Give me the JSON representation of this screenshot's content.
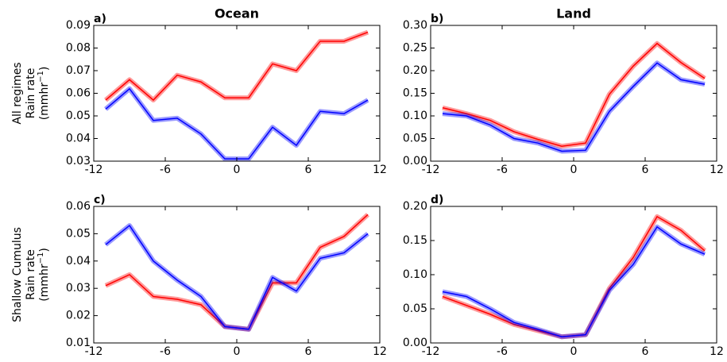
{
  "chart_data": [
    {
      "type": "line",
      "title": "Ocean",
      "label": "a)",
      "ylabel": [
        "All regimes",
        "Rain rate"
      ],
      "ylabel_unit": {
        "base": "(mmhr",
        "exp": "−1",
        "close": ")"
      },
      "x": [
        -11,
        -9,
        -7,
        -5,
        -3,
        -1,
        1,
        3,
        5,
        7,
        9,
        11
      ],
      "series": [
        {
          "color": "#ff0000",
          "values": [
            0.057,
            0.066,
            0.057,
            0.068,
            0.065,
            0.058,
            0.058,
            0.073,
            0.07,
            0.083,
            0.083,
            0.087
          ]
        },
        {
          "color": "#0000ff",
          "values": [
            0.053,
            0.062,
            0.048,
            0.049,
            0.042,
            0.031,
            0.031,
            0.045,
            0.037,
            0.052,
            0.051,
            0.057
          ]
        }
      ],
      "xlim": [
        -12,
        12
      ],
      "xticks": [
        -12,
        -6,
        0,
        6,
        12
      ],
      "ylim": [
        0.03,
        0.09
      ],
      "yticks": [
        0.03,
        0.04,
        0.05,
        0.06,
        0.07,
        0.08,
        0.09
      ]
    },
    {
      "type": "line",
      "title": "Land",
      "label": "b)",
      "x": [
        -11,
        -9,
        -7,
        -5,
        -3,
        -1,
        1,
        3,
        5,
        7,
        9,
        11
      ],
      "series": [
        {
          "color": "#ff0000",
          "values": [
            0.118,
            0.105,
            0.09,
            0.065,
            0.048,
            0.033,
            0.04,
            0.148,
            0.21,
            0.26,
            0.218,
            0.183
          ]
        },
        {
          "color": "#0000ff",
          "values": [
            0.105,
            0.1,
            0.08,
            0.05,
            0.04,
            0.022,
            0.024,
            0.11,
            0.165,
            0.217,
            0.18,
            0.17
          ]
        }
      ],
      "xlim": [
        -12,
        12
      ],
      "xticks": [
        -12,
        -6,
        0,
        6,
        12
      ],
      "ylim": [
        0,
        0.3
      ],
      "yticks": [
        {
          "value": 0,
          "label": "0.00"
        },
        {
          "value": 0.05,
          "label": "0.05"
        },
        {
          "value": 0.1,
          "label": "0.10"
        },
        {
          "value": 0.15,
          "label": "0.15"
        },
        {
          "value": 0.2,
          "label": "0.20"
        },
        {
          "value": 0.25,
          "label": "0.25"
        },
        {
          "value": 0.3,
          "label": "0.30"
        }
      ]
    },
    {
      "type": "line",
      "label": "c)",
      "ylabel": [
        "Shallow Cumulus",
        "Rain rate"
      ],
      "ylabel_unit": {
        "base": "(mmhr",
        "exp": "−1",
        "close": ")"
      },
      "x": [
        -11,
        -9,
        -7,
        -5,
        -3,
        -1,
        1,
        3,
        5,
        7,
        9,
        11
      ],
      "series": [
        {
          "color": "#ff0000",
          "values": [
            0.031,
            0.035,
            0.027,
            0.026,
            0.024,
            0.016,
            0.015,
            0.032,
            0.032,
            0.045,
            0.049,
            0.057
          ]
        },
        {
          "color": "#0000ff",
          "values": [
            0.046,
            0.053,
            0.04,
            0.033,
            0.027,
            0.016,
            0.015,
            0.034,
            0.029,
            0.041,
            0.043,
            0.05
          ]
        }
      ],
      "xlim": [
        -12,
        12
      ],
      "xticks": [
        -12,
        -6,
        0,
        6,
        12
      ],
      "ylim": [
        0.01,
        0.06
      ],
      "yticks": [
        0.01,
        0.02,
        0.03,
        0.04,
        0.05,
        0.06
      ]
    },
    {
      "type": "line",
      "label": "d)",
      "x": [
        -11,
        -9,
        -7,
        -5,
        -3,
        -1,
        1,
        3,
        5,
        7,
        9,
        11
      ],
      "series": [
        {
          "color": "#ff0000",
          "values": [
            0.068,
            0.055,
            0.042,
            0.027,
            0.018,
            0.009,
            0.012,
            0.08,
            0.125,
            0.185,
            0.165,
            0.135
          ]
        },
        {
          "color": "#0000ff",
          "values": [
            0.075,
            0.068,
            0.05,
            0.03,
            0.02,
            0.009,
            0.012,
            0.077,
            0.115,
            0.17,
            0.145,
            0.13
          ]
        }
      ],
      "xlim": [
        -12,
        12
      ],
      "xticks": [
        -12,
        -6,
        0,
        6,
        12
      ],
      "ylim": [
        0,
        0.2
      ],
      "yticks": [
        {
          "value": 0,
          "label": "0.00"
        },
        {
          "value": 0.05,
          "label": "0.05"
        },
        {
          "value": 0.1,
          "label": "0.10"
        },
        {
          "value": 0.15,
          "label": "0.15"
        },
        {
          "value": 0.2,
          "label": "0.20"
        }
      ]
    }
  ]
}
